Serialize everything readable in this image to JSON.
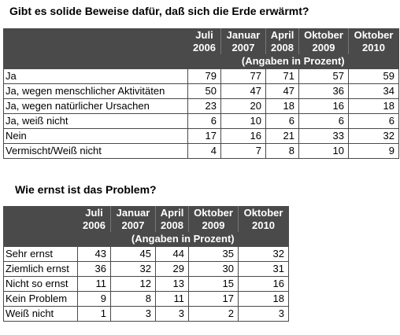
{
  "table1": {
    "title": "Gibt es solide Beweise dafür, daß sich die Erde erwärmt?",
    "headers": [
      [
        "Juli",
        "2006"
      ],
      [
        "Januar",
        "2007"
      ],
      [
        "April",
        "2008"
      ],
      [
        "Oktober",
        "2009"
      ],
      [
        "Oktober",
        "2010"
      ]
    ],
    "subheader": "(Angaben in Prozent)",
    "rows": [
      {
        "label": "Ja",
        "values": [
          "79",
          "77",
          "71",
          "57",
          "59"
        ]
      },
      {
        "label": "Ja, wegen menschlicher Aktivitäten",
        "values": [
          "50",
          "47",
          "47",
          "36",
          "34"
        ]
      },
      {
        "label": "Ja, wegen natürlicher Ursachen",
        "values": [
          "23",
          "20",
          "18",
          "16",
          "18"
        ]
      },
      {
        "label": "Ja, weiß nicht",
        "values": [
          "6",
          "10",
          "6",
          "6",
          "6"
        ]
      },
      {
        "label": "Nein",
        "values": [
          "17",
          "16",
          "21",
          "33",
          "32"
        ]
      },
      {
        "label": "Vermischt/Weiß nicht",
        "values": [
          "4",
          "7",
          "8",
          "10",
          "9"
        ]
      }
    ]
  },
  "table2": {
    "title": "Wie ernst ist das Problem?",
    "headers": [
      [
        "Juli",
        "2006"
      ],
      [
        "Januar",
        "2007"
      ],
      [
        "April",
        "2008"
      ],
      [
        "Oktober",
        "2009"
      ],
      [
        "Oktober",
        "2010"
      ]
    ],
    "subheader": "(Angaben in Prozent)",
    "rows": [
      {
        "label": "Sehr ernst",
        "values": [
          "43",
          "45",
          "44",
          "35",
          "32"
        ]
      },
      {
        "label": "Ziemlich ernst",
        "values": [
          "36",
          "32",
          "29",
          "30",
          "31"
        ]
      },
      {
        "label": "Nicht so ernst",
        "values": [
          "11",
          "12",
          "13",
          "15",
          "16"
        ]
      },
      {
        "label": "Kein Problem",
        "values": [
          "9",
          "8",
          "11",
          "17",
          "18"
        ]
      },
      {
        "label": "Weiß nicht",
        "values": [
          "1",
          "3",
          "3",
          "2",
          "3"
        ]
      }
    ]
  }
}
